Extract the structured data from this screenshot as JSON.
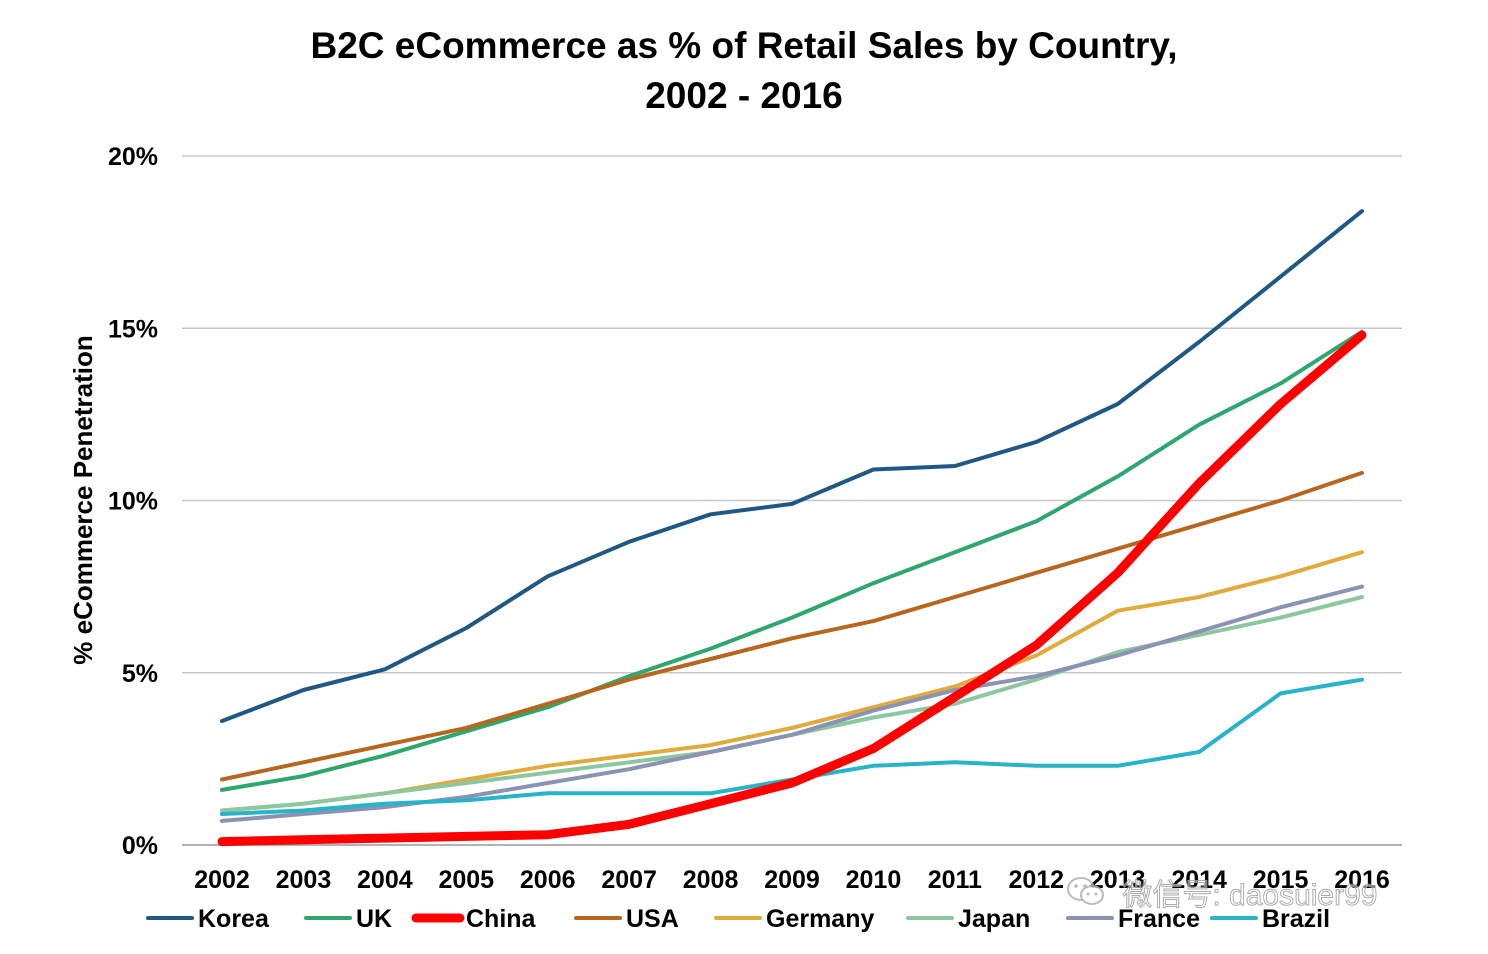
{
  "chart_data": {
    "type": "line",
    "title_lines": [
      "B2C eCommerce as % of Retail Sales by Country,",
      "2002 - 2016"
    ],
    "ylabel": "% eCommerce Penetration",
    "xlabel": "",
    "categories": [
      "2002",
      "2003",
      "2004",
      "2005",
      "2006",
      "2007",
      "2008",
      "2009",
      "2010",
      "2011",
      "2012",
      "2013",
      "2014",
      "2015",
      "2016"
    ],
    "ylim": [
      0,
      20
    ],
    "yticks": [
      0,
      5,
      10,
      15,
      20
    ],
    "ytick_labels": [
      "0%",
      "5%",
      "10%",
      "15%",
      "20%"
    ],
    "grid": true,
    "legend_position": "bottom",
    "series": [
      {
        "name": "Korea",
        "color": "#1f5885",
        "emphasis": false,
        "values": [
          3.6,
          4.5,
          5.1,
          6.3,
          7.8,
          8.8,
          9.6,
          9.9,
          10.9,
          11.0,
          11.7,
          12.8,
          14.6,
          16.5,
          18.4
        ]
      },
      {
        "name": "UK",
        "color": "#2ea76f",
        "emphasis": false,
        "values": [
          1.6,
          2.0,
          2.6,
          3.3,
          4.0,
          4.9,
          5.7,
          6.6,
          7.6,
          8.5,
          9.4,
          10.7,
          12.2,
          13.4,
          14.9
        ]
      },
      {
        "name": "China",
        "color": "#ff0000",
        "emphasis": true,
        "values": [
          0.1,
          0.15,
          0.2,
          0.25,
          0.3,
          0.6,
          1.2,
          1.8,
          2.8,
          4.3,
          5.8,
          7.9,
          10.5,
          12.8,
          14.8
        ]
      },
      {
        "name": "USA",
        "color": "#b8651e",
        "emphasis": false,
        "values": [
          1.9,
          2.4,
          2.9,
          3.4,
          4.1,
          4.8,
          5.4,
          6.0,
          6.5,
          7.2,
          7.9,
          8.6,
          9.3,
          10.0,
          10.8
        ]
      },
      {
        "name": "Germany",
        "color": "#e0ab3c",
        "emphasis": false,
        "values": [
          1.0,
          1.2,
          1.5,
          1.9,
          2.3,
          2.6,
          2.9,
          3.4,
          4.0,
          4.6,
          5.5,
          6.8,
          7.2,
          7.8,
          8.5
        ]
      },
      {
        "name": "Japan",
        "color": "#8cc7a0",
        "emphasis": false,
        "values": [
          1.0,
          1.2,
          1.5,
          1.8,
          2.1,
          2.4,
          2.7,
          3.2,
          3.7,
          4.1,
          4.8,
          5.6,
          6.1,
          6.6,
          7.2
        ]
      },
      {
        "name": "France",
        "color": "#8b93b5",
        "emphasis": false,
        "values": [
          0.7,
          0.9,
          1.1,
          1.4,
          1.8,
          2.2,
          2.7,
          3.2,
          3.9,
          4.5,
          4.9,
          5.5,
          6.2,
          6.9,
          7.5
        ]
      },
      {
        "name": "Brazil",
        "color": "#27b3c8",
        "emphasis": false,
        "values": [
          0.9,
          1.0,
          1.2,
          1.3,
          1.5,
          1.5,
          1.5,
          1.9,
          2.3,
          2.4,
          2.3,
          2.3,
          2.7,
          4.4,
          4.8
        ]
      }
    ]
  },
  "watermark": {
    "text": "微信号: daosuier99",
    "icon": "wechat-icon"
  }
}
